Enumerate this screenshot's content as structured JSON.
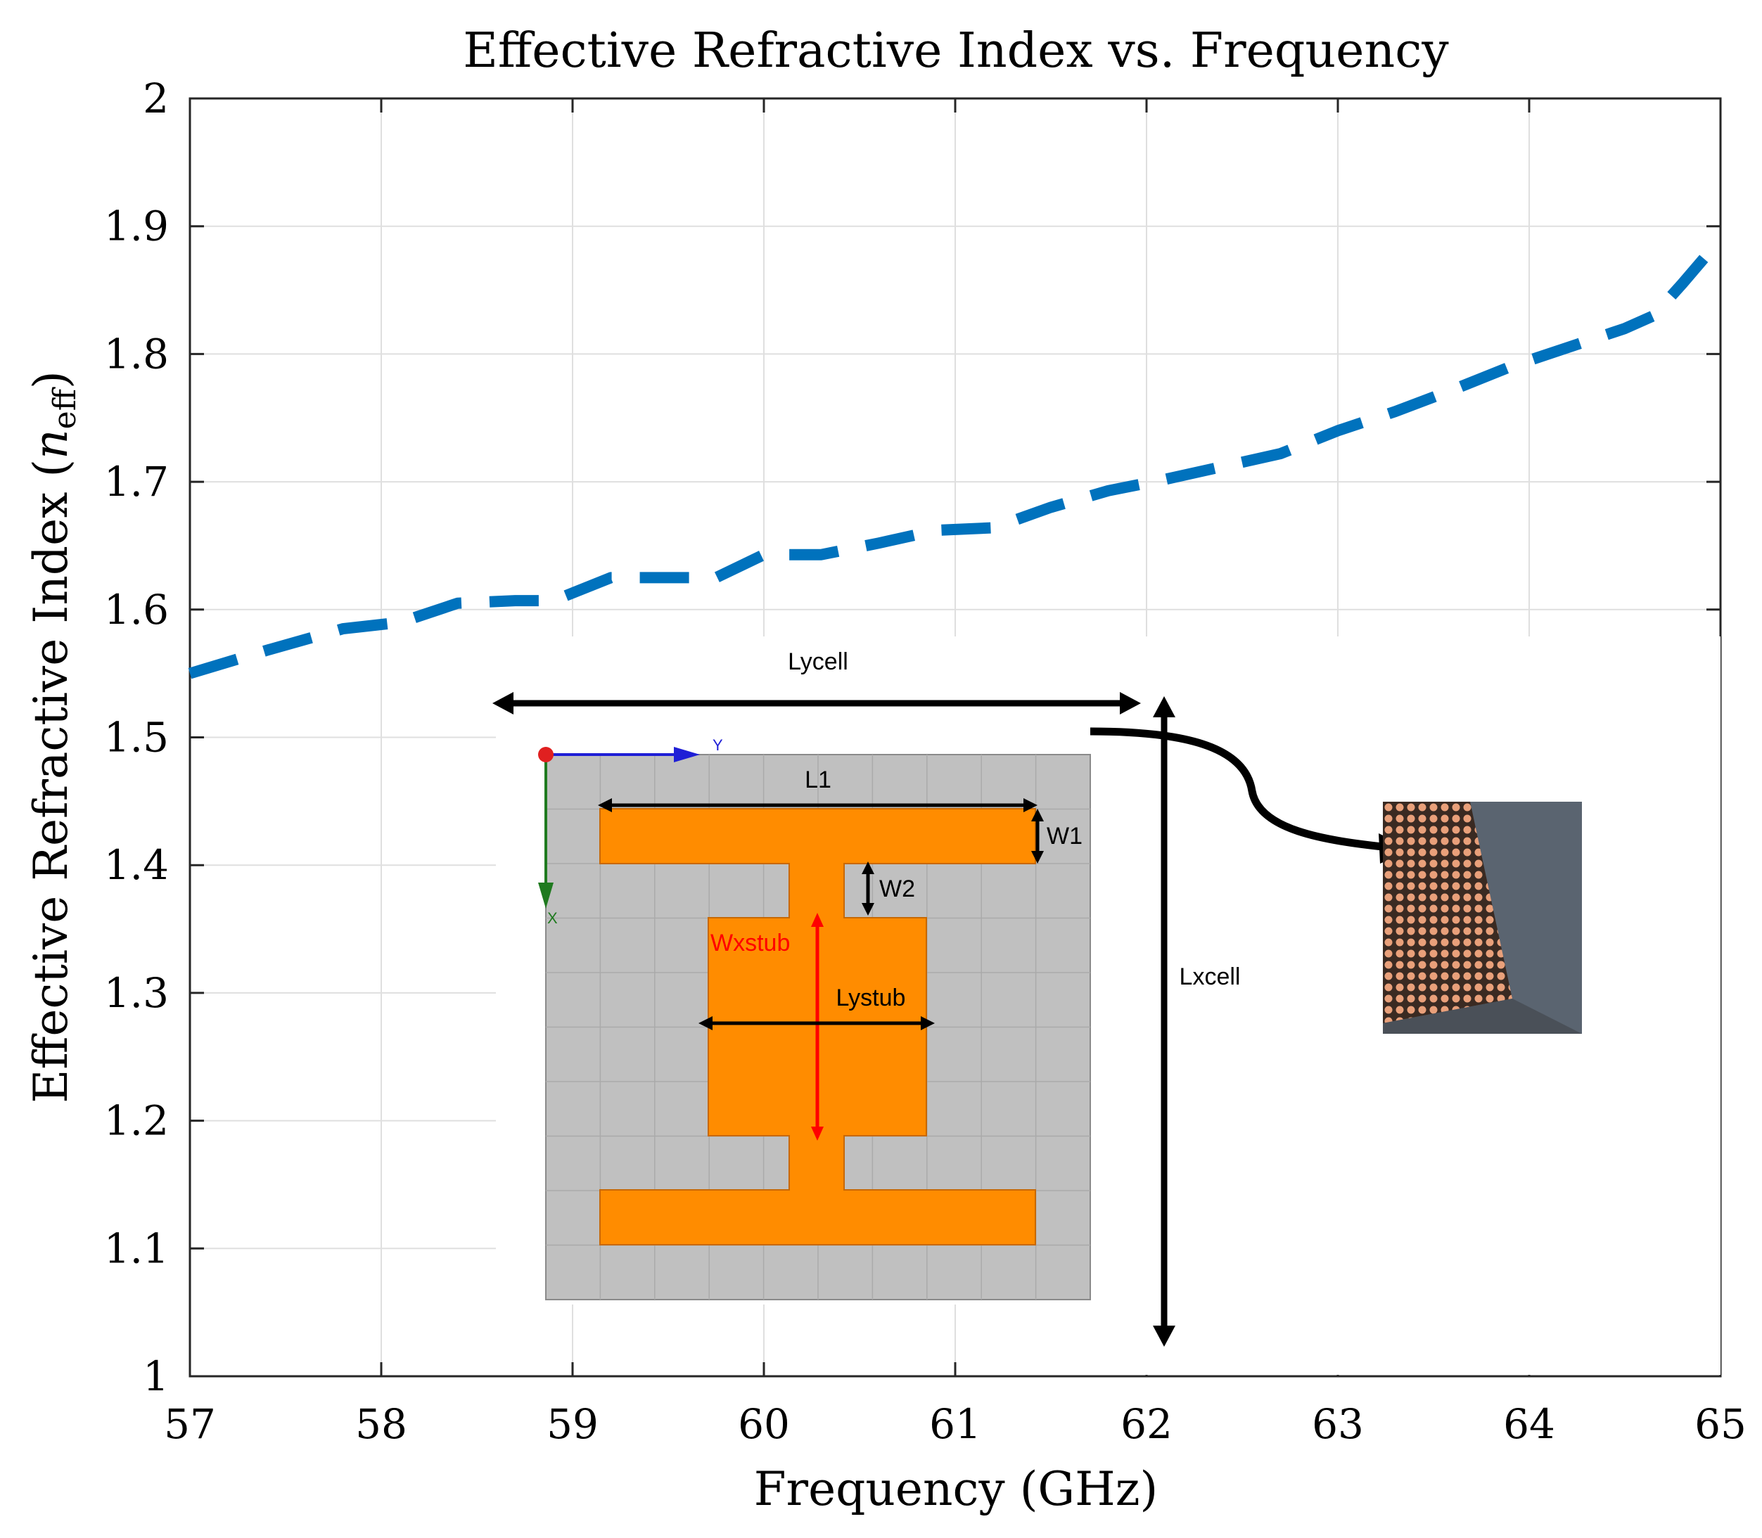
{
  "chart_data": {
    "type": "line",
    "title": "Effective Refractive Index vs. Frequency",
    "xlabel": "Frequency (GHz)",
    "ylabel_main": "Effective Refractive Index (",
    "ylabel_var": "n",
    "ylabel_sub": "eff",
    "ylabel_close": ")",
    "xlim": [
      57,
      65
    ],
    "ylim": [
      1,
      2
    ],
    "xticks": [
      57,
      58,
      59,
      60,
      61,
      62,
      63,
      64,
      65
    ],
    "yticks": [
      1,
      1.1,
      1.2,
      1.3,
      1.4,
      1.5,
      1.6,
      1.7,
      1.8,
      1.9,
      2
    ],
    "xtick_labels": [
      "57",
      "58",
      "59",
      "60",
      "61",
      "62",
      "63",
      "64",
      "65"
    ],
    "ytick_labels": [
      "1",
      "1.1",
      "1.2",
      "1.3",
      "1.4",
      "1.5",
      "1.6",
      "1.7",
      "1.8",
      "1.9",
      "2"
    ],
    "grid": true,
    "series": [
      {
        "name": "n_eff",
        "color": "#0072BD",
        "style": "dashed",
        "x": [
          57.0,
          57.4,
          57.8,
          58.1,
          58.4,
          58.7,
          58.9,
          59.2,
          59.5,
          59.75,
          60.0,
          60.3,
          60.6,
          60.9,
          61.2,
          61.5,
          61.8,
          62.1,
          62.4,
          62.7,
          63.0,
          63.3,
          63.6,
          63.9,
          64.2,
          64.5,
          64.65,
          64.8,
          65.0
        ],
        "y": [
          1.55,
          1.568,
          1.585,
          1.59,
          1.605,
          1.607,
          1.607,
          1.625,
          1.625,
          1.625,
          1.643,
          1.643,
          1.652,
          1.662,
          1.664,
          1.68,
          1.693,
          1.702,
          1.712,
          1.722,
          1.74,
          1.755,
          1.772,
          1.79,
          1.805,
          1.82,
          1.83,
          1.855,
          1.89
        ]
      }
    ],
    "colors": {
      "line": "#0072BD",
      "grid": "#dfdfdf",
      "axis": "#262626"
    }
  },
  "inset": {
    "labels": {
      "lycell": "Lycell",
      "lxcell": "Lxcell",
      "l1": "L1",
      "w1": "W1",
      "w2": "W2",
      "wxstub": "Wxstub",
      "lystub": "Lystub",
      "axis_y": "Y",
      "axis_x": "X"
    },
    "colors": {
      "substrate": "#c0c0c0",
      "patch": "#ff8c00",
      "arrow": "#000000",
      "wxstub": "#ff0000",
      "axis_y": "#1f1fd6",
      "axis_x": "#1f7a1f",
      "origin": "#e02020"
    }
  }
}
